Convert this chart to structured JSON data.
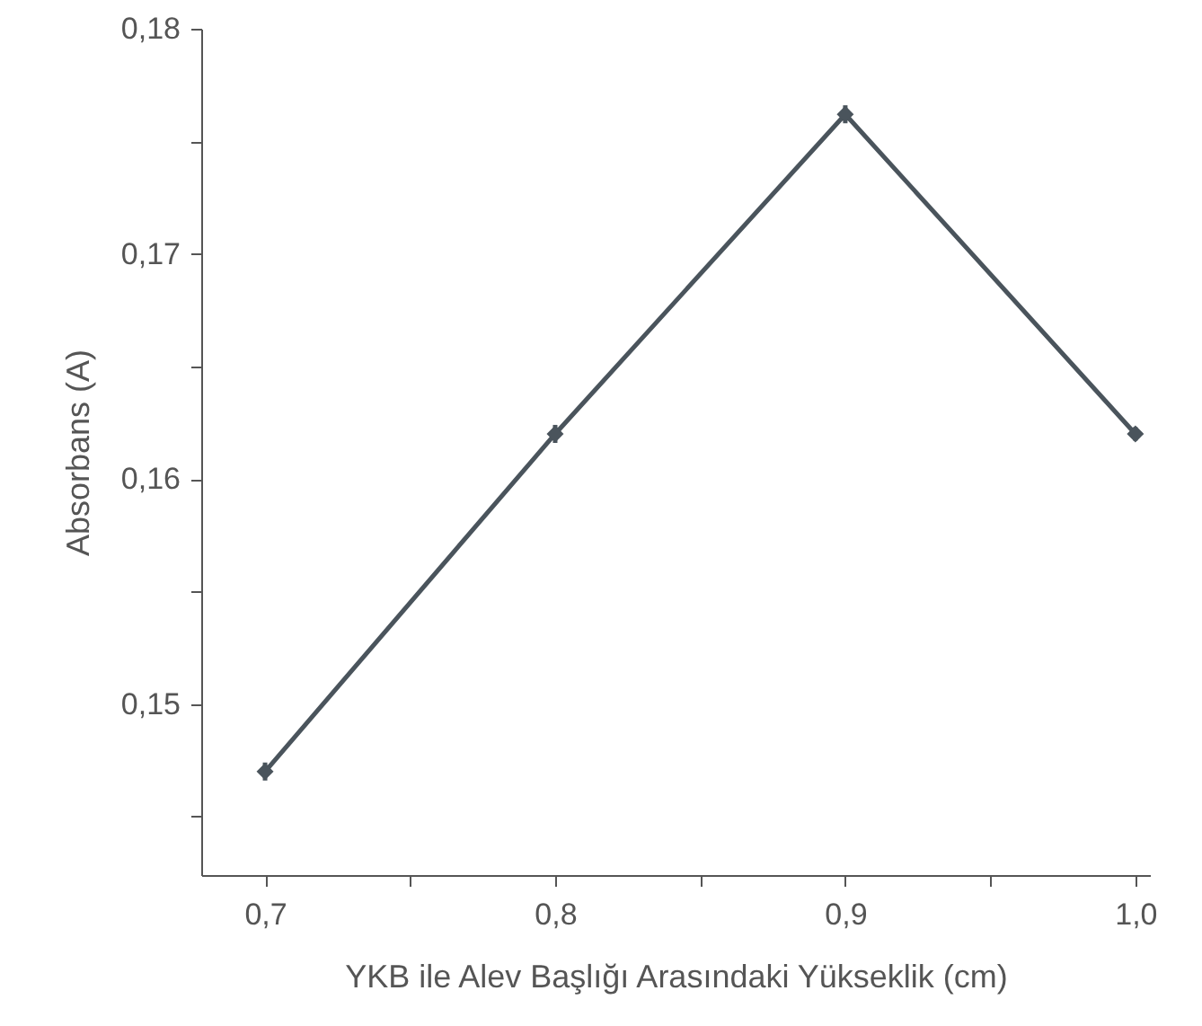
{
  "chart_data": {
    "type": "line",
    "xlabel": "YKB ile Alev Başlığı Arasındaki Yükseklik (cm)",
    "ylabel": "Absorbans (A)",
    "x": [
      0.7,
      0.8,
      0.9,
      1.0
    ],
    "series": [
      {
        "color": "#4a545c",
        "values": [
          0.147,
          0.162,
          0.1762,
          0.162
        ],
        "errors": [
          0.0004,
          0.0004,
          0.0004,
          0.0003
        ]
      }
    ],
    "xlim": [
      0.678,
      1.005
    ],
    "xticks": [
      {
        "value": 0.7,
        "label": "0,7"
      },
      {
        "value": 0.75,
        "label": null
      },
      {
        "value": 0.8,
        "label": "0,8"
      },
      {
        "value": 0.85,
        "label": null
      },
      {
        "value": 0.9,
        "label": "0,9"
      },
      {
        "value": 0.95,
        "label": null
      },
      {
        "value": 1.0,
        "label": "1,0"
      }
    ],
    "ylim": [
      0.1424,
      0.18
    ],
    "yticks": [
      {
        "value": 0.145,
        "label": null
      },
      {
        "value": 0.15,
        "label": "0,15"
      },
      {
        "value": 0.155,
        "label": null
      },
      {
        "value": 0.16,
        "label": "0,16"
      },
      {
        "value": 0.165,
        "label": null
      },
      {
        "value": 0.17,
        "label": "0,17"
      },
      {
        "value": 0.175,
        "label": null
      },
      {
        "value": 0.18,
        "label": "0,18"
      }
    ],
    "marker": "diamond",
    "line_style": "solid"
  }
}
